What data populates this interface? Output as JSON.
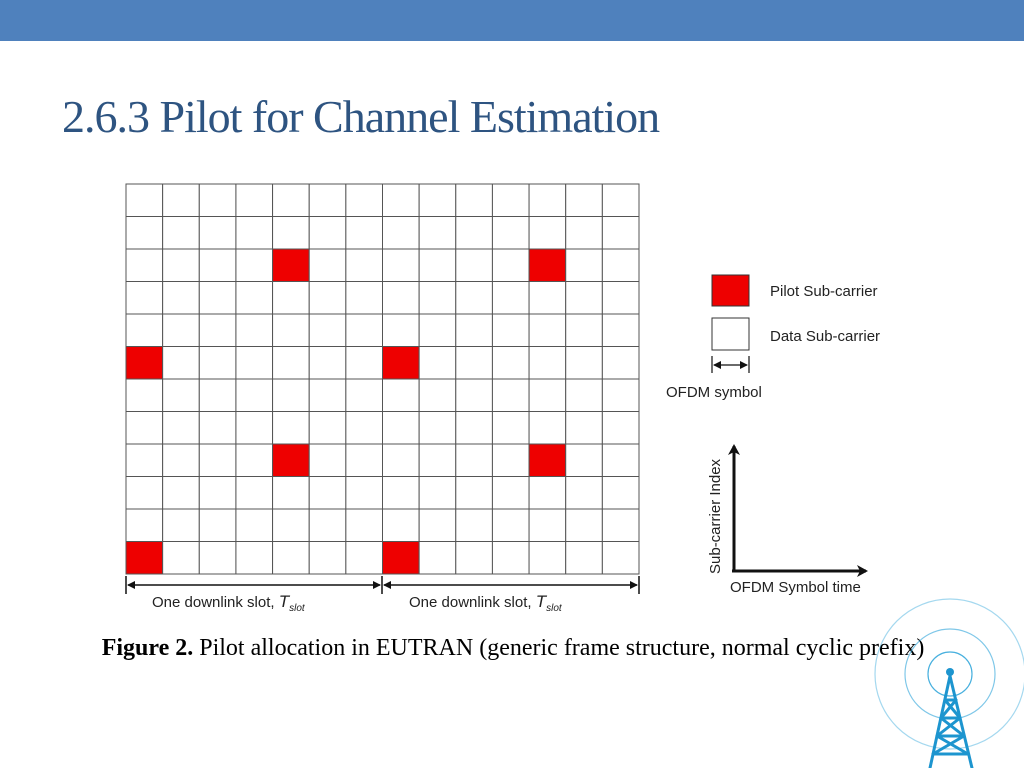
{
  "slide": {
    "title": "2.6.3 Pilot for Channel Estimation"
  },
  "figure": {
    "grid": {
      "rows": 12,
      "columns": 14,
      "pilot_cells": [
        [
          2,
          4
        ],
        [
          2,
          11
        ],
        [
          5,
          0
        ],
        [
          5,
          7
        ],
        [
          8,
          4
        ],
        [
          8,
          11
        ],
        [
          11,
          0
        ],
        [
          11,
          7
        ]
      ],
      "pilot_color": "#ee0000",
      "data_color": "#ffffff",
      "line_color": "#555555"
    },
    "slot_labels": [
      {
        "text": "One downlink slot, ",
        "symbol": "T",
        "subscript": "slot"
      },
      {
        "text": "One downlink slot, ",
        "symbol": "T",
        "subscript": "slot"
      }
    ],
    "legend": {
      "pilot_label": "Pilot Sub-carrier",
      "data_label": "Data Sub-carrier",
      "symbol_label": "OFDM symbol"
    },
    "axes": {
      "y_label": "Sub-carrier Index",
      "x_label": "OFDM Symbol time"
    }
  },
  "caption": {
    "label": "Figure 2.",
    "text": " Pilot allocation in EUTRAN (generic frame structure, normal cyclic prefix)"
  },
  "colors": {
    "header_bar": "#4f81bd",
    "title": "#2e5481",
    "pilot": "#ee0000",
    "decoration": "#29a3d9"
  },
  "decoration": {
    "icon": "radio-tower-icon"
  }
}
